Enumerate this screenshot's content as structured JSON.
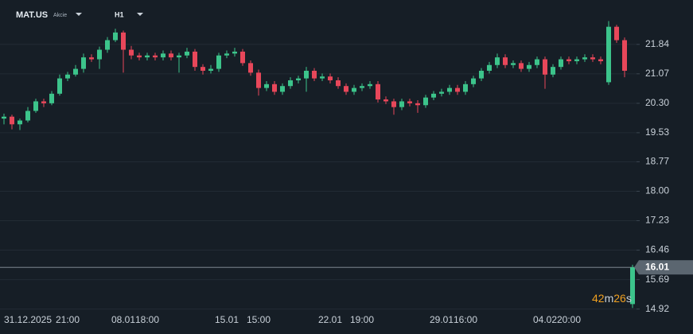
{
  "header": {
    "symbol": "MAT.US",
    "asset_class": "Akcie",
    "timeframe": "H1"
  },
  "chart_data": {
    "type": "candlestick",
    "categories": [
      null,
      null,
      null,
      "31.12.2025",
      null,
      null,
      null,
      null,
      "21:00",
      null,
      null,
      null,
      null,
      null,
      null,
      "08.01",
      null,
      null,
      "18:00",
      null,
      null,
      null,
      null,
      null,
      null,
      null,
      null,
      null,
      "15.01",
      null,
      null,
      null,
      "15:00",
      null,
      null,
      null,
      null,
      null,
      null,
      null,
      null,
      "22.01",
      null,
      null,
      null,
      "19:00",
      null,
      null,
      null,
      null,
      null,
      null,
      null,
      null,
      null,
      "29.01",
      null,
      null,
      "16:00",
      null,
      null,
      null,
      null,
      null,
      null,
      null,
      null,
      null,
      "04.02",
      null,
      null,
      "20:00",
      null,
      null,
      null,
      null,
      null,
      null,
      null,
      null
    ],
    "open": [
      19.9,
      19.95,
      19.75,
      19.85,
      20.1,
      20.35,
      20.3,
      20.55,
      20.95,
      21.05,
      21.2,
      21.5,
      21.45,
      21.7,
      21.95,
      22.15,
      21.7,
      21.55,
      21.5,
      21.55,
      21.5,
      21.6,
      21.5,
      21.55,
      21.65,
      21.25,
      21.15,
      21.2,
      21.55,
      21.6,
      21.65,
      21.35,
      21.1,
      20.7,
      20.8,
      20.6,
      20.75,
      20.9,
      20.95,
      21.15,
      20.95,
      21.0,
      20.9,
      20.75,
      20.6,
      20.7,
      20.75,
      20.8,
      20.4,
      20.35,
      20.2,
      20.35,
      20.3,
      20.25,
      20.45,
      20.55,
      20.6,
      20.7,
      20.6,
      20.8,
      20.95,
      21.15,
      21.3,
      21.5,
      21.3,
      21.35,
      21.2,
      21.3,
      21.45,
      21.05,
      21.25,
      21.45,
      21.4,
      21.45,
      21.5,
      21.45,
      20.85,
      22.3,
      21.95,
      15.05
    ],
    "high": [
      20.03,
      20.0,
      19.9,
      20.2,
      20.42,
      20.42,
      20.62,
      21.05,
      21.12,
      21.3,
      21.6,
      21.58,
      21.78,
      22.03,
      22.25,
      22.2,
      21.8,
      21.62,
      21.62,
      21.62,
      21.68,
      21.68,
      21.62,
      21.75,
      21.72,
      21.32,
      21.3,
      21.62,
      21.68,
      21.75,
      21.72,
      21.42,
      21.18,
      20.88,
      20.88,
      20.82,
      20.98,
      21.02,
      21.25,
      21.22,
      21.08,
      21.08,
      20.98,
      20.82,
      20.78,
      20.82,
      20.88,
      20.88,
      20.48,
      20.42,
      20.42,
      20.42,
      20.38,
      20.52,
      20.62,
      20.68,
      20.78,
      20.78,
      20.88,
      21.02,
      21.22,
      21.38,
      21.6,
      21.58,
      21.42,
      21.42,
      21.38,
      21.52,
      21.52,
      21.32,
      21.52,
      21.52,
      21.52,
      21.58,
      21.58,
      21.52,
      22.45,
      22.35,
      22.02,
      16.08
    ],
    "low": [
      19.75,
      19.62,
      19.6,
      19.8,
      20.05,
      20.2,
      20.25,
      20.5,
      20.88,
      21.0,
      21.1,
      21.38,
      21.2,
      21.62,
      21.9,
      21.1,
      21.45,
      21.42,
      21.42,
      21.42,
      21.42,
      21.42,
      21.1,
      21.48,
      21.15,
      21.05,
      21.08,
      21.12,
      21.48,
      21.52,
      21.28,
      21.02,
      20.5,
      20.62,
      20.52,
      20.52,
      20.68,
      20.82,
      20.6,
      20.88,
      20.88,
      20.82,
      20.68,
      20.52,
      20.52,
      20.62,
      20.68,
      20.32,
      20.28,
      20.0,
      20.12,
      20.22,
      20.05,
      20.18,
      20.38,
      20.48,
      20.52,
      20.52,
      20.52,
      20.72,
      20.88,
      21.08,
      21.22,
      21.22,
      21.22,
      21.12,
      21.12,
      21.22,
      20.68,
      20.98,
      21.18,
      21.32,
      21.32,
      21.38,
      21.38,
      21.32,
      20.78,
      21.88,
      20.98,
      14.95
    ],
    "close": [
      19.95,
      19.75,
      19.85,
      20.1,
      20.35,
      20.3,
      20.55,
      20.95,
      21.05,
      21.2,
      21.5,
      21.45,
      21.7,
      21.95,
      22.15,
      21.7,
      21.55,
      21.5,
      21.55,
      21.5,
      21.6,
      21.5,
      21.55,
      21.65,
      21.25,
      21.15,
      21.2,
      21.55,
      21.6,
      21.65,
      21.35,
      21.1,
      20.7,
      20.8,
      20.6,
      20.75,
      20.9,
      20.95,
      21.15,
      20.95,
      21.0,
      20.9,
      20.75,
      20.6,
      20.7,
      20.75,
      20.8,
      20.4,
      20.35,
      20.2,
      20.35,
      20.3,
      20.25,
      20.45,
      20.55,
      20.6,
      20.7,
      20.6,
      20.8,
      20.95,
      21.15,
      21.3,
      21.5,
      21.3,
      21.35,
      21.2,
      21.3,
      21.45,
      21.05,
      21.25,
      21.45,
      21.4,
      21.45,
      21.5,
      21.45,
      21.4,
      22.3,
      21.95,
      21.15,
      16.01
    ],
    "up_color": "#3cc48b",
    "down_color": "#e8475a",
    "ylim": [
      14.85,
      23.0
    ],
    "yticks": [
      14.92,
      15.69,
      16.46,
      17.23,
      {
        "value": 18,
        "label": "18.00"
      },
      18.77,
      19.53,
      {
        "value": 20.3,
        "label": "20.30"
      },
      21.07,
      21.84
    ],
    "grid": true,
    "current_price": 16.01,
    "countdown": [
      "42",
      "m",
      "26",
      "s"
    ]
  }
}
